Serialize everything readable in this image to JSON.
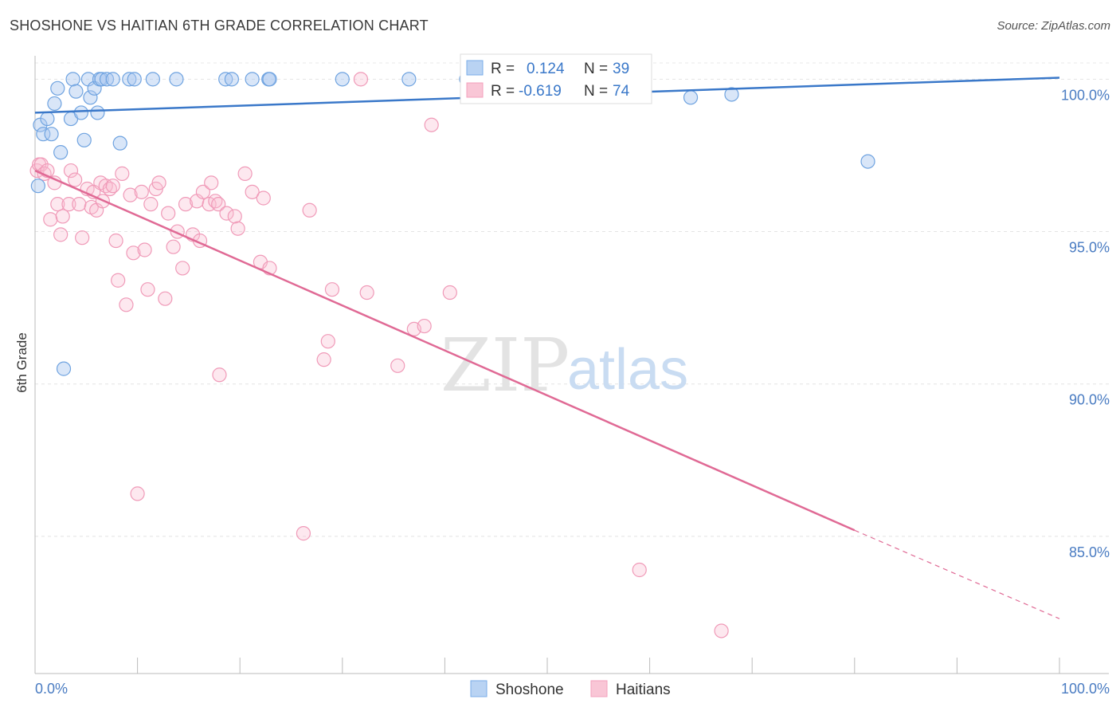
{
  "title": "SHOSHONE VS HAITIAN 6TH GRADE CORRELATION CHART",
  "source": "Source: ZipAtlas.com",
  "watermark": {
    "zip": "ZIP",
    "atlas": "atlas"
  },
  "colors": {
    "shoshone": "#7aaee8",
    "shoshone_line": "#3a78c9",
    "haitians": "#f4a0bc",
    "haitians_line": "#e06a95",
    "tick": "#4a7cc2"
  },
  "legend": {
    "r_label": "R =",
    "n_label": "N =",
    "shoshone": {
      "r": "0.124",
      "n": "39"
    },
    "haitians": {
      "r": "-0.619",
      "n": "74"
    }
  },
  "chart_data": {
    "type": "scatter",
    "title": "SHOSHONE VS HAITIAN 6TH GRADE CORRELATION CHART",
    "xlabel": "",
    "ylabel": "6th Grade",
    "xlim": [
      0,
      100
    ],
    "ylim": [
      80.5,
      101.5
    ],
    "x_ticks": [
      "0.0%",
      "100.0%"
    ],
    "y_ticks": [
      {
        "value": 100,
        "label": "100.0%"
      },
      {
        "value": 95,
        "label": "95.0%"
      },
      {
        "value": 90,
        "label": "90.0%"
      },
      {
        "value": 85,
        "label": "85.0%"
      }
    ],
    "grid": "horizontal dashed",
    "legend_position": "top-center",
    "series": [
      {
        "name": "Shoshone",
        "trend": {
          "x": [
            0,
            100
          ],
          "y": [
            98.9,
            100.05
          ],
          "dashed_extension": false
        },
        "points": [
          [
            0.3,
            96.5
          ],
          [
            0.5,
            98.5
          ],
          [
            0.8,
            98.2
          ],
          [
            1.2,
            98.7
          ],
          [
            1.6,
            98.2
          ],
          [
            1.9,
            99.2
          ],
          [
            2.2,
            99.7
          ],
          [
            2.5,
            97.6
          ],
          [
            2.8,
            90.5
          ],
          [
            3.5,
            98.7
          ],
          [
            3.7,
            100
          ],
          [
            4.0,
            99.6
          ],
          [
            4.5,
            98.9
          ],
          [
            4.8,
            98.0
          ],
          [
            5.2,
            100
          ],
          [
            5.4,
            99.4
          ],
          [
            5.8,
            99.7
          ],
          [
            6.1,
            98.9
          ],
          [
            6.3,
            100
          ],
          [
            6.5,
            100
          ],
          [
            7.0,
            100
          ],
          [
            7.6,
            100
          ],
          [
            8.3,
            97.9
          ],
          [
            9.2,
            100
          ],
          [
            9.7,
            100
          ],
          [
            11.5,
            100
          ],
          [
            13.8,
            100
          ],
          [
            18.6,
            100
          ],
          [
            19.2,
            100
          ],
          [
            21.2,
            100
          ],
          [
            22.8,
            100
          ],
          [
            22.9,
            100
          ],
          [
            30.0,
            100
          ],
          [
            36.5,
            100
          ],
          [
            42.1,
            100
          ],
          [
            54.8,
            100
          ],
          [
            64.0,
            99.4
          ],
          [
            68.0,
            99.5
          ],
          [
            81.3,
            97.3
          ]
        ]
      },
      {
        "name": "Haitians",
        "trend": {
          "x": [
            0,
            80
          ],
          "y": [
            97.0,
            85.2
          ],
          "dashed_to": [
            100,
            82.3
          ]
        },
        "points": [
          [
            0.2,
            97.0
          ],
          [
            0.4,
            97.2
          ],
          [
            0.6,
            97.2
          ],
          [
            0.9,
            96.9
          ],
          [
            1.2,
            97.0
          ],
          [
            1.5,
            95.4
          ],
          [
            1.9,
            96.6
          ],
          [
            2.2,
            95.9
          ],
          [
            2.5,
            94.9
          ],
          [
            2.7,
            95.5
          ],
          [
            3.3,
            95.9
          ],
          [
            3.5,
            97.0
          ],
          [
            3.9,
            96.7
          ],
          [
            4.3,
            95.9
          ],
          [
            4.6,
            94.8
          ],
          [
            5.1,
            96.4
          ],
          [
            5.5,
            95.8
          ],
          [
            5.7,
            96.3
          ],
          [
            6.0,
            95.7
          ],
          [
            6.4,
            96.6
          ],
          [
            6.6,
            96.0
          ],
          [
            6.9,
            96.5
          ],
          [
            7.3,
            96.4
          ],
          [
            7.6,
            96.5
          ],
          [
            7.9,
            94.7
          ],
          [
            8.1,
            93.4
          ],
          [
            8.5,
            96.9
          ],
          [
            8.9,
            92.6
          ],
          [
            9.3,
            96.2
          ],
          [
            9.6,
            94.3
          ],
          [
            10.0,
            86.4
          ],
          [
            10.4,
            96.3
          ],
          [
            10.7,
            94.4
          ],
          [
            11.0,
            93.1
          ],
          [
            11.3,
            95.9
          ],
          [
            11.8,
            96.4
          ],
          [
            12.1,
            96.6
          ],
          [
            12.7,
            92.8
          ],
          [
            13.0,
            95.6
          ],
          [
            13.5,
            94.5
          ],
          [
            13.9,
            95.0
          ],
          [
            14.4,
            93.8
          ],
          [
            14.7,
            95.9
          ],
          [
            15.4,
            94.9
          ],
          [
            15.8,
            96.0
          ],
          [
            16.1,
            94.7
          ],
          [
            16.4,
            96.3
          ],
          [
            17.0,
            95.9
          ],
          [
            17.2,
            96.6
          ],
          [
            17.6,
            96.0
          ],
          [
            17.9,
            95.9
          ],
          [
            18.7,
            95.6
          ],
          [
            19.5,
            95.5
          ],
          [
            19.8,
            95.1
          ],
          [
            20.5,
            96.9
          ],
          [
            21.2,
            96.3
          ],
          [
            22.0,
            94.0
          ],
          [
            22.3,
            96.1
          ],
          [
            22.9,
            93.8
          ],
          [
            26.2,
            85.1
          ],
          [
            26.8,
            95.7
          ],
          [
            28.2,
            90.8
          ],
          [
            28.6,
            91.4
          ],
          [
            29.0,
            93.1
          ],
          [
            31.8,
            100
          ],
          [
            32.4,
            93.0
          ],
          [
            35.4,
            90.6
          ],
          [
            37.0,
            91.8
          ],
          [
            38.0,
            91.9
          ],
          [
            38.7,
            98.5
          ],
          [
            40.5,
            93.0
          ],
          [
            59.0,
            83.9
          ],
          [
            67.0,
            81.9
          ],
          [
            18.0,
            90.3
          ]
        ]
      }
    ]
  }
}
